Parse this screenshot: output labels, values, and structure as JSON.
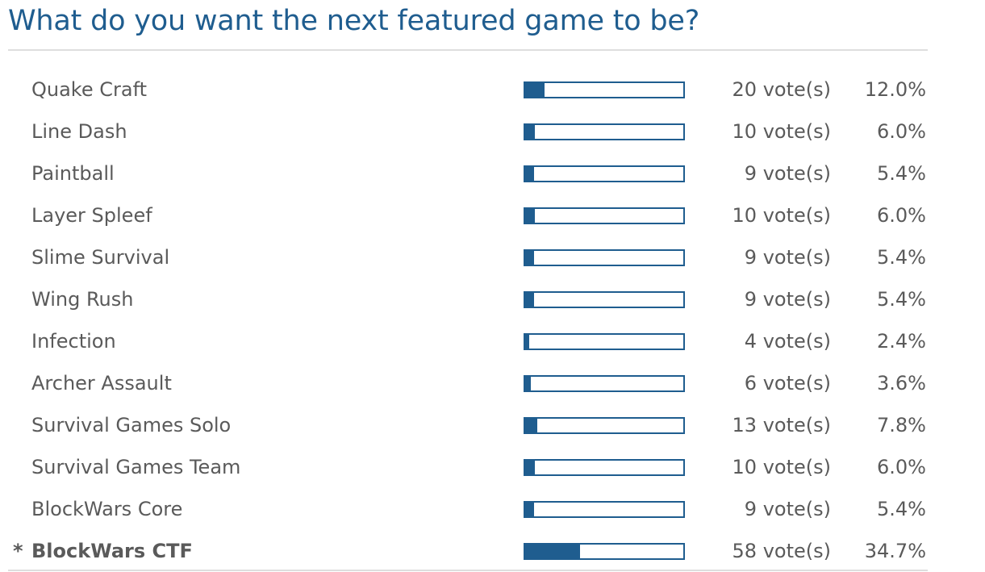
{
  "poll": {
    "title": "What do you want the next featured game to be?",
    "winner_marker": "*",
    "options": [
      {
        "label": "Quake Craft",
        "votes": "20 vote(s)",
        "percent": "12.0%",
        "fraction": 0.12,
        "winner": false
      },
      {
        "label": "Line Dash",
        "votes": "10 vote(s)",
        "percent": "6.0%",
        "fraction": 0.06,
        "winner": false
      },
      {
        "label": "Paintball",
        "votes": "9 vote(s)",
        "percent": "5.4%",
        "fraction": 0.054,
        "winner": false
      },
      {
        "label": "Layer Spleef",
        "votes": "10 vote(s)",
        "percent": "6.0%",
        "fraction": 0.06,
        "winner": false
      },
      {
        "label": "Slime Survival",
        "votes": "9 vote(s)",
        "percent": "5.4%",
        "fraction": 0.054,
        "winner": false
      },
      {
        "label": "Wing Rush",
        "votes": "9 vote(s)",
        "percent": "5.4%",
        "fraction": 0.054,
        "winner": false
      },
      {
        "label": "Infection",
        "votes": "4 vote(s)",
        "percent": "2.4%",
        "fraction": 0.024,
        "winner": false
      },
      {
        "label": "Archer Assault",
        "votes": "6 vote(s)",
        "percent": "3.6%",
        "fraction": 0.036,
        "winner": false
      },
      {
        "label": "Survival Games Solo",
        "votes": "13 vote(s)",
        "percent": "7.8%",
        "fraction": 0.078,
        "winner": false
      },
      {
        "label": "Survival Games Team",
        "votes": "10 vote(s)",
        "percent": "6.0%",
        "fraction": 0.06,
        "winner": false
      },
      {
        "label": "BlockWars Core",
        "votes": "9 vote(s)",
        "percent": "5.4%",
        "fraction": 0.054,
        "winner": false
      },
      {
        "label": "BlockWars CTF",
        "votes": "58 vote(s)",
        "percent": "34.7%",
        "fraction": 0.347,
        "winner": true
      }
    ]
  },
  "colors": {
    "accent": "#1f5d8f",
    "text": "#5a5a5a",
    "divider": "#dedede"
  }
}
